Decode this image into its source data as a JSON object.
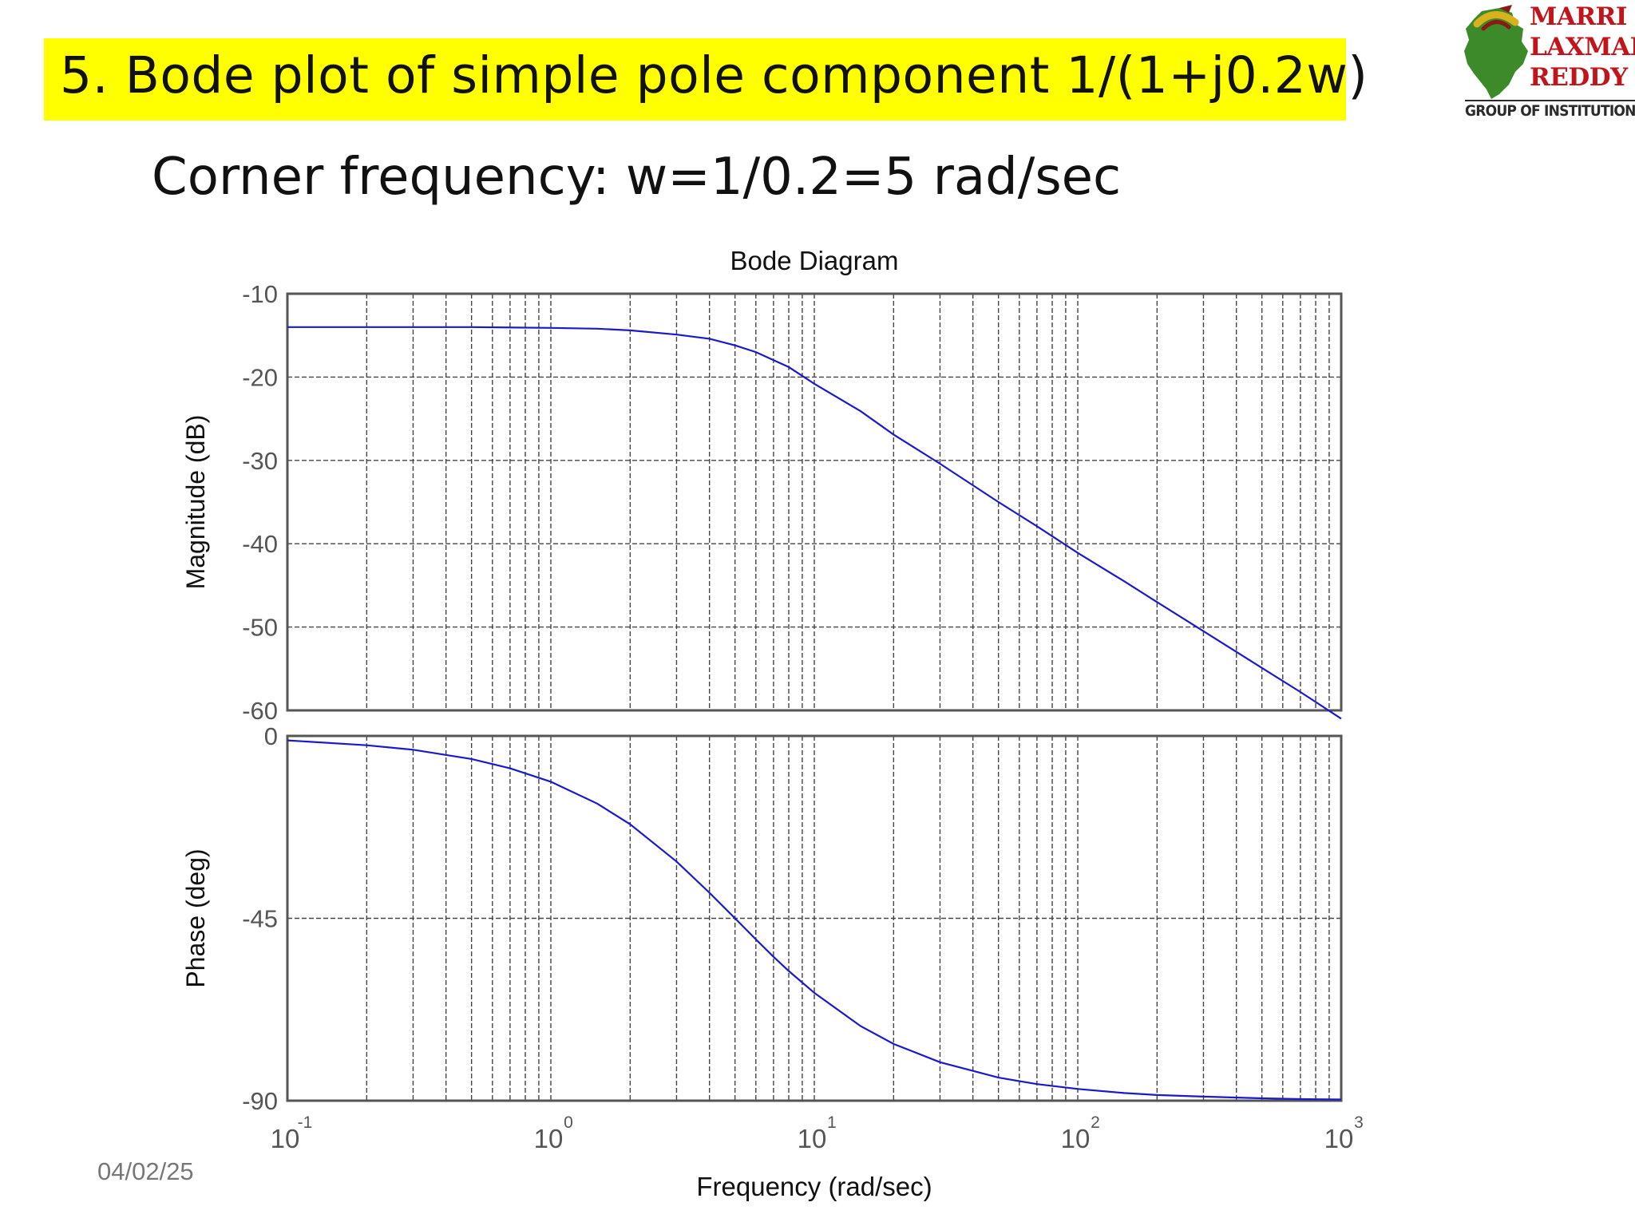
{
  "slide": {
    "title": "5. Bode plot of simple pole component  1/(1+j0.2w)",
    "subtitle": "Corner frequency: w=1/0.2=5 rad/sec",
    "date": "04/02/25",
    "title_bg_color": "#ffff00"
  },
  "logo": {
    "line1": "MARRI",
    "line2": "LAXMAN",
    "line3": "REDDY",
    "tagline": "GROUP OF INSTITUTIONS",
    "icon": "state-map-emblem-icon"
  },
  "chart_data": {
    "type": "line",
    "title": "Bode Diagram",
    "xlabel": "Frequency  (rad/sec)",
    "x_scale": "log",
    "xlim": [
      0.1,
      1000
    ],
    "x_ticks": [
      {
        "base": "10",
        "exp": "-1"
      },
      {
        "base": "10",
        "exp": "0"
      },
      {
        "base": "10",
        "exp": "1"
      },
      {
        "base": "10",
        "exp": "2"
      },
      {
        "base": "10",
        "exp": "3"
      }
    ],
    "grid": true,
    "line_color": "#1a1acc",
    "panels": [
      {
        "name": "magnitude",
        "ylabel": "Magnitude (dB)",
        "ylim": [
          -60,
          -10
        ],
        "y_ticks": [
          "-10",
          "-20",
          "-30",
          "-40",
          "-50",
          "-60"
        ],
        "x": [
          0.1,
          0.2,
          0.5,
          1,
          1.5,
          2,
          3,
          4,
          5,
          6,
          8,
          10,
          15,
          20,
          30,
          50,
          70,
          100,
          150,
          200,
          300,
          500,
          700,
          1000
        ],
        "y": [
          -14.0,
          -14.0,
          -14.0,
          -14.1,
          -14.2,
          -14.4,
          -14.9,
          -15.4,
          -16.2,
          -17.0,
          -18.8,
          -20.8,
          -24.1,
          -26.9,
          -30.4,
          -35.0,
          -37.9,
          -41.1,
          -44.5,
          -47.0,
          -50.5,
          -54.9,
          -57.8,
          -61.0
        ]
      },
      {
        "name": "phase",
        "ylabel": "Phase (deg)",
        "ylim": [
          -90,
          0
        ],
        "y_ticks": [
          "0",
          "-45",
          "-90"
        ],
        "x": [
          0.1,
          0.2,
          0.3,
          0.5,
          0.7,
          1,
          1.5,
          2,
          3,
          4,
          5,
          6,
          7,
          8,
          10,
          15,
          20,
          30,
          50,
          70,
          100,
          150,
          200,
          300,
          500,
          700,
          1000
        ],
        "y": [
          -1.1,
          -2.3,
          -3.4,
          -5.7,
          -8.0,
          -11.3,
          -16.7,
          -21.8,
          -31.0,
          -38.7,
          -45.0,
          -50.2,
          -54.5,
          -58.0,
          -63.4,
          -71.6,
          -76.0,
          -80.5,
          -84.3,
          -85.9,
          -87.1,
          -88.1,
          -88.6,
          -89.0,
          -89.4,
          -89.6,
          -89.7
        ]
      }
    ]
  }
}
